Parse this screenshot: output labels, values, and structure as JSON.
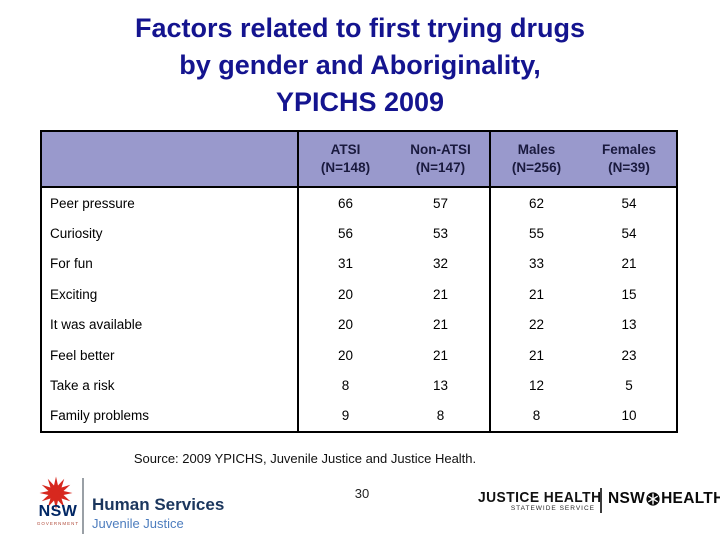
{
  "title": {
    "lines": [
      "Factors related to first trying drugs",
      "by gender and Aboriginality,",
      "YPICHS 2009"
    ]
  },
  "table": {
    "columns": [
      {
        "title": "ATSI",
        "subtitle": "(N=148)"
      },
      {
        "title": "Non-ATSI",
        "subtitle": "(N=147)"
      },
      {
        "title": "Males",
        "subtitle": "(N=256)"
      },
      {
        "title": "Females",
        "subtitle": "(N=39)"
      }
    ],
    "rows": [
      {
        "label": "Peer pressure",
        "values": [
          66,
          57,
          62,
          54
        ]
      },
      {
        "label": "Curiosity",
        "values": [
          56,
          53,
          55,
          54
        ]
      },
      {
        "label": "For fun",
        "values": [
          31,
          32,
          33,
          21
        ]
      },
      {
        "label": "Exciting",
        "values": [
          20,
          21,
          21,
          15
        ]
      },
      {
        "label": "It was available",
        "values": [
          20,
          21,
          22,
          13
        ]
      },
      {
        "label": "Feel better",
        "values": [
          20,
          21,
          21,
          23
        ]
      },
      {
        "label": "Take a risk",
        "values": [
          8,
          13,
          12,
          5
        ]
      },
      {
        "label": "Family problems",
        "values": [
          9,
          8,
          8,
          10
        ]
      }
    ]
  },
  "source_note": "Source: 2009 YPICHS, Juvenile Justice and Justice Health.",
  "page_number": "30",
  "footer": {
    "nsw_gov": {
      "acronym": "NSW",
      "sub": "GOVERNMENT",
      "org": "Human Services",
      "dept": "Juvenile Justice"
    },
    "justice_health": {
      "name": "JUSTICE HEALTH",
      "sub": "STATEWIDE SERVICE"
    },
    "nsw_health": {
      "left": "NSW",
      "right": "HEALTH"
    }
  },
  "colors": {
    "title_navy": "#14148f",
    "table_header_bg": "#9999cc",
    "table_header_text": "#1a1a3e",
    "table_border": "#000000",
    "waratah_red": "#d7281e",
    "nsw_navy": "#002664",
    "human_services_navy": "#1b365d",
    "juvenile_justice_blue": "#4d7dbe"
  }
}
